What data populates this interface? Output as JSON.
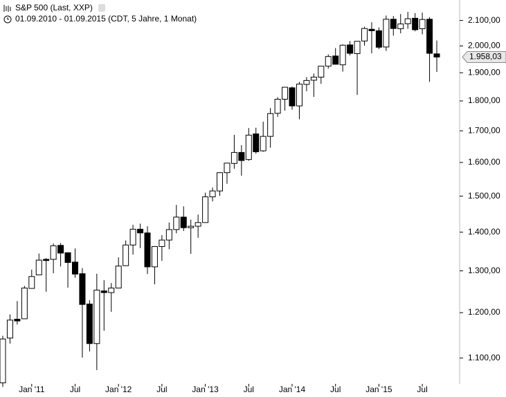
{
  "chart_data": {
    "type": "candlestick",
    "title": "S&P 500 (Last, XXP)",
    "subtitle": "01.09.2010 - 01.09.2015 (CDT, 5 Jahre, 1 Monat)",
    "categories": [
      null,
      null,
      null,
      null,
      "Jan '11",
      null,
      null,
      null,
      null,
      null,
      "Jul",
      null,
      null,
      null,
      null,
      null,
      "Jan '12",
      null,
      null,
      null,
      null,
      null,
      "Jul",
      null,
      null,
      null,
      null,
      null,
      "Jan '13",
      null,
      null,
      null,
      null,
      null,
      "Jul",
      null,
      null,
      null,
      null,
      null,
      "Jan '14",
      null,
      null,
      null,
      null,
      null,
      "Jul",
      null,
      null,
      null,
      null,
      null,
      "Jan '15",
      null,
      null,
      null,
      null,
      null,
      "Jul",
      null,
      null
    ],
    "open": [
      1049,
      1143,
      1185,
      1186,
      1257,
      1290,
      1329,
      1329,
      1365,
      1346,
      1322,
      1293,
      1220,
      1131,
      1251,
      1247,
      1258,
      1313,
      1366,
      1408,
      1398,
      1310,
      1362,
      1379,
      1407,
      1441,
      1412,
      1416,
      1426,
      1498,
      1515,
      1569,
      1597,
      1631,
      1609,
      1690,
      1636,
      1682,
      1758,
      1806,
      1846,
      1783,
      1858,
      1873,
      1884,
      1924,
      1962,
      1929,
      2004,
      1971,
      2019,
      2065,
      2059,
      1996,
      2105,
      2067,
      2087,
      2109,
      2067,
      2105,
      1970
    ],
    "high": [
      1148,
      1196,
      1227,
      1263,
      1303,
      1344,
      1332,
      1370,
      1371,
      1346,
      1357,
      1307,
      1229,
      1293,
      1277,
      1270,
      1334,
      1378,
      1420,
      1423,
      1416,
      1363,
      1392,
      1426,
      1475,
      1471,
      1434,
      1448,
      1510,
      1525,
      1570,
      1598,
      1687,
      1654,
      1709,
      1710,
      1730,
      1776,
      1813,
      1849,
      1850,
      1867,
      1884,
      1897,
      1924,
      1968,
      1992,
      2006,
      2019,
      2018,
      2075,
      2093,
      2072,
      2120,
      2118,
      2126,
      2135,
      2130,
      2132,
      2113,
      2021
    ],
    "low": [
      1041,
      1131,
      1173,
      1186,
      1257,
      1290,
      1249,
      1294,
      1311,
      1259,
      1283,
      1101,
      1114,
      1075,
      1159,
      1202,
      1258,
      1312,
      1341,
      1358,
      1292,
      1267,
      1325,
      1355,
      1397,
      1403,
      1343,
      1385,
      1426,
      1485,
      1501,
      1536,
      1581,
      1560,
      1605,
      1627,
      1633,
      1646,
      1746,
      1767,
      1770,
      1738,
      1834,
      1814,
      1860,
      1915,
      1930,
      1904,
      1964,
      1821,
      2001,
      1972,
      1988,
      1981,
      2040,
      2049,
      2067,
      2057,
      2045,
      1867,
      1903
    ],
    "close": [
      1141,
      1183,
      1181,
      1258,
      1286,
      1327,
      1326,
      1364,
      1345,
      1321,
      1292,
      1219,
      1131,
      1253,
      1247,
      1258,
      1312,
      1366,
      1408,
      1398,
      1310,
      1362,
      1379,
      1407,
      1441,
      1412,
      1416,
      1426,
      1498,
      1515,
      1569,
      1598,
      1631,
      1606,
      1686,
      1633,
      1682,
      1757,
      1806,
      1848,
      1783,
      1859,
      1872,
      1884,
      1924,
      1960,
      1931,
      2003,
      1972,
      2018,
      2068,
      2059,
      1995,
      2105,
      2068,
      2086,
      2107,
      2063,
      2104,
      1972,
      1958
    ],
    "up_color": "#ffffff",
    "down_color": "#000000",
    "log_scale": true,
    "ylim": [
      1047,
      2184
    ],
    "yticks": [
      {
        "value": 1100,
        "label": "1.100,00"
      },
      {
        "value": 1200,
        "label": "1.200,00"
      },
      {
        "value": 1300,
        "label": "1.300,00"
      },
      {
        "value": 1400,
        "label": "1.400,00"
      },
      {
        "value": 1500,
        "label": "1.500,00"
      },
      {
        "value": 1600,
        "label": "1.600,00"
      },
      {
        "value": 1700,
        "label": "1.700,00"
      },
      {
        "value": 1800,
        "label": "1.800,00"
      },
      {
        "value": 1900,
        "label": "1.900,00"
      },
      {
        "value": 2000,
        "label": "2.000,00"
      },
      {
        "value": 2100,
        "label": "2.100,00"
      }
    ],
    "last_price": {
      "value": 1958.03,
      "label": "1.958,03"
    }
  }
}
